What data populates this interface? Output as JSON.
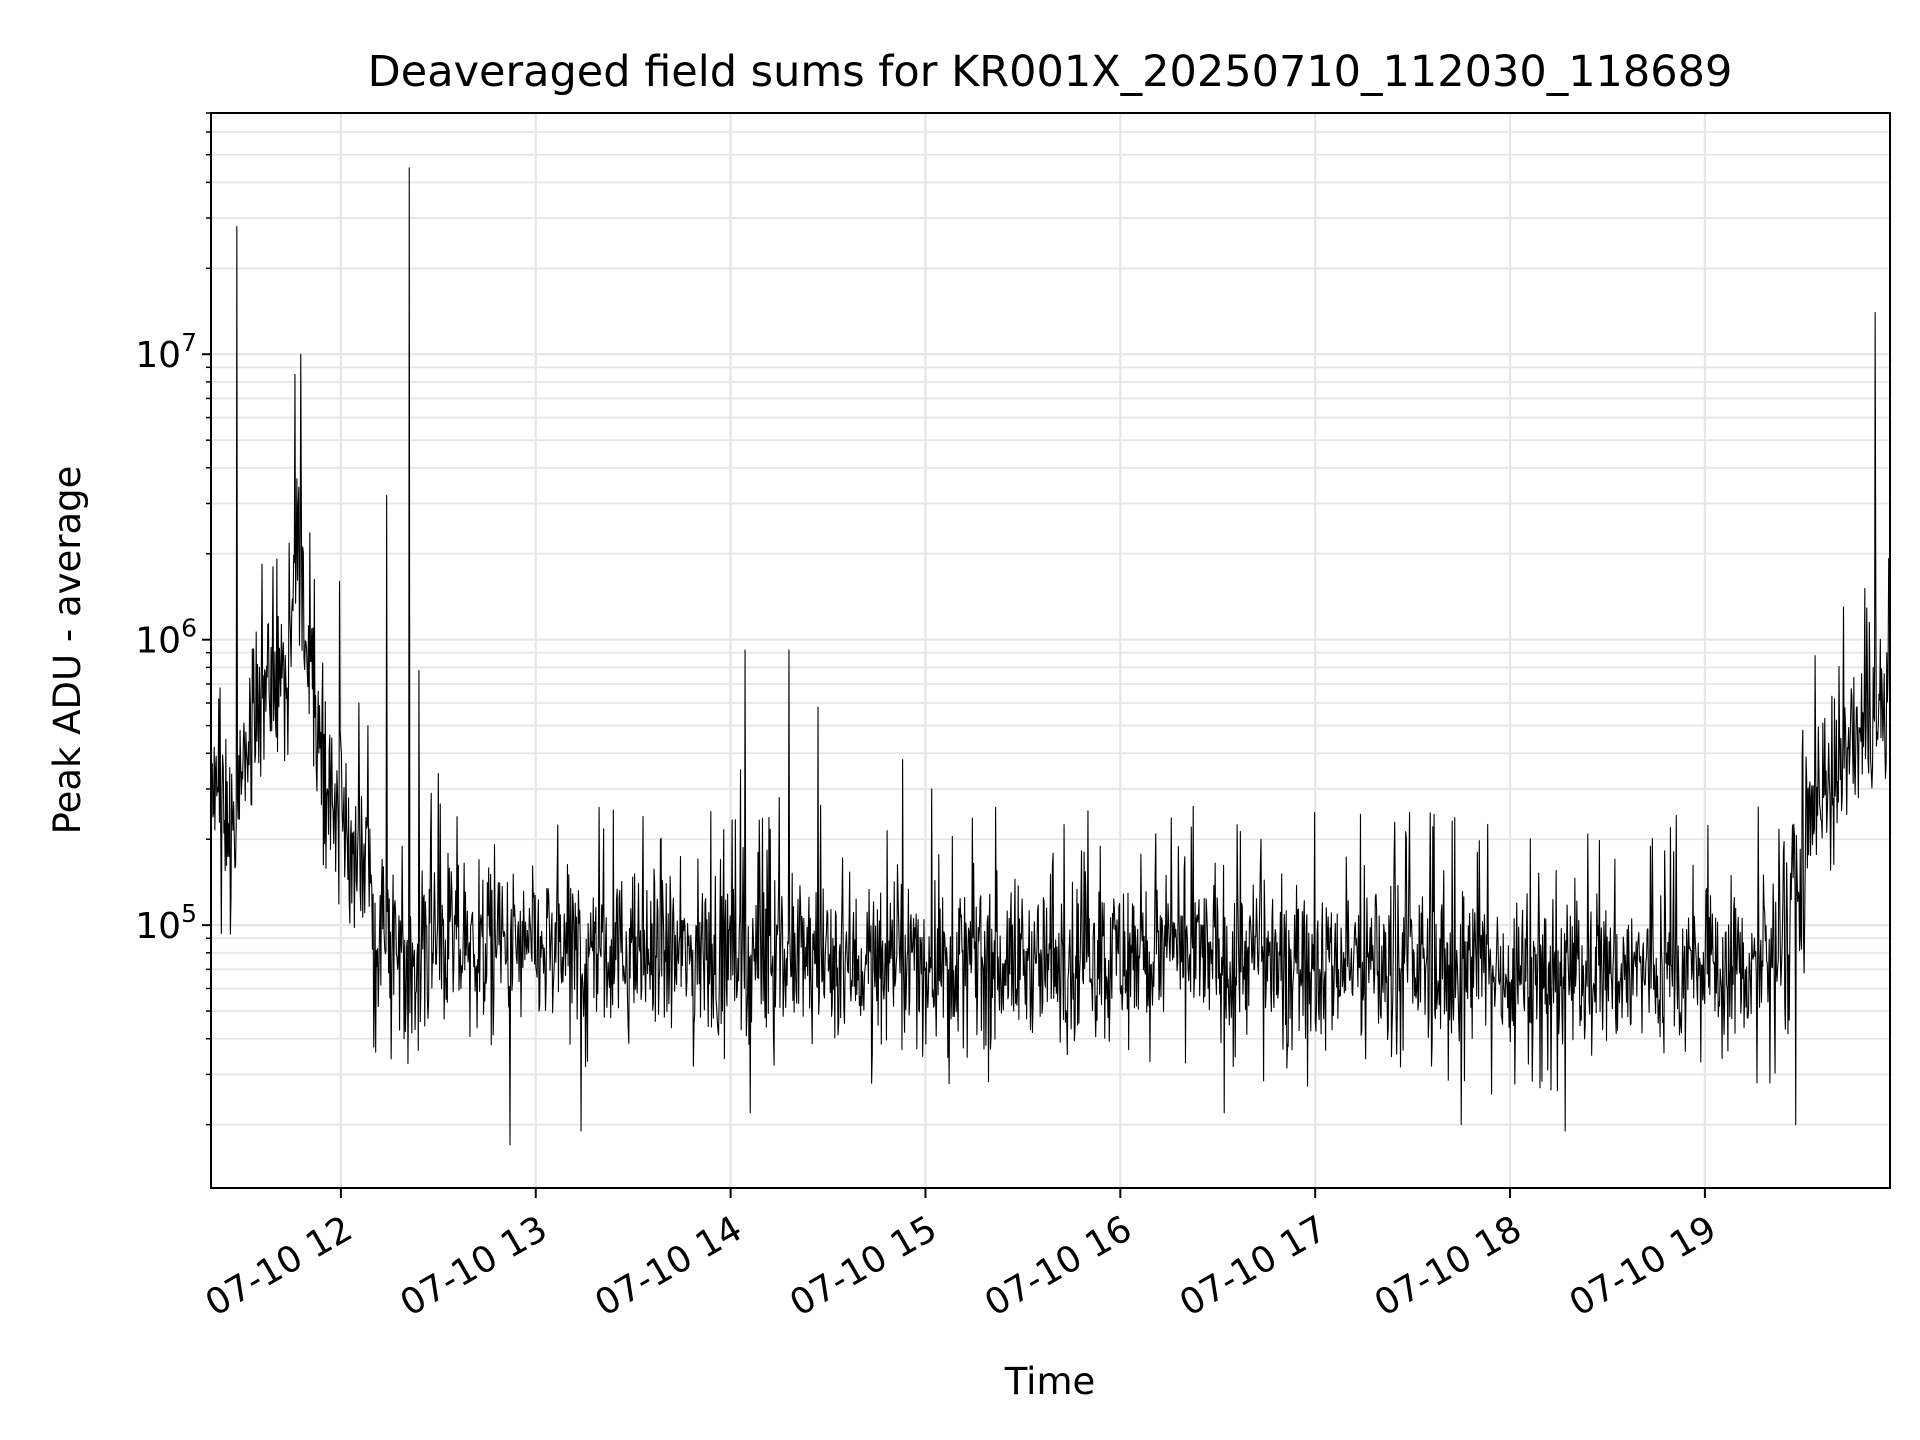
{
  "chart_data": {
    "type": "line",
    "title": "Deaveraged field sums for KR001X_20250710_112030_118689",
    "xlabel": "Time",
    "ylabel": "Peak ADU - average",
    "y_scale": "log",
    "grid": true,
    "legend": "none",
    "x_tick_labels": [
      "07-10 12",
      "07-10 13",
      "07-10 14",
      "07-10 15",
      "07-10 16",
      "07-10 17",
      "07-10 18",
      "07-10 19"
    ],
    "y_tick_labels": [
      {
        "value": 100000,
        "base": "10",
        "exp": "5"
      },
      {
        "value": 1000000,
        "base": "10",
        "exp": "6"
      },
      {
        "value": 10000000,
        "base": "10",
        "exp": "7"
      }
    ],
    "xlim": [
      "2025-07-10 11:20",
      "2025-07-10 19:57"
    ],
    "ylim": [
      12000,
      70000000
    ],
    "line_color": "#000000",
    "grid_color": "#e6e6e6",
    "series": [
      {
        "x_start": "2025-07-10 11:20",
        "x_end": "2025-07-10 19:57",
        "baseline": [
          [
            0.0,
            300000
          ],
          [
            3.0,
            230000
          ],
          [
            5.0,
            260000
          ],
          [
            7.0,
            200000
          ],
          [
            8.5,
            230000
          ],
          [
            10.0,
            320000
          ],
          [
            12.0,
            500000
          ],
          [
            14.0,
            600000
          ],
          [
            16.0,
            750000
          ],
          [
            18.5,
            650000
          ],
          [
            20.5,
            650000
          ],
          [
            22.0,
            700000
          ],
          [
            24.0,
            600000
          ],
          [
            25.5,
            1700000
          ],
          [
            27.0,
            2100000
          ],
          [
            28.5,
            1300000
          ],
          [
            30.5,
            900000
          ],
          [
            32.0,
            700000
          ],
          [
            34.0,
            450000
          ],
          [
            36.0,
            300000
          ],
          [
            38.0,
            260000
          ],
          [
            40.0,
            300000
          ],
          [
            42.0,
            200000
          ],
          [
            44.0,
            160000
          ],
          [
            46.0,
            170000
          ],
          [
            48.0,
            200000
          ],
          [
            50.0,
            90000
          ],
          [
            60.0,
            85000
          ],
          [
            80.0,
            85000
          ],
          [
            100.0,
            80000
          ],
          [
            150.0,
            78000
          ],
          [
            200.0,
            75000
          ],
          [
            250.0,
            75000
          ],
          [
            300.0,
            80000
          ],
          [
            350.0,
            75000
          ],
          [
            400.0,
            70000
          ],
          [
            440.0,
            70000
          ],
          [
            470.0,
            70000
          ],
          [
            480.0,
            75000
          ],
          [
            483.0,
            95000
          ],
          [
            486.0,
            120000
          ],
          [
            490.0,
            200000
          ],
          [
            495.0,
            300000
          ],
          [
            500.0,
            380000
          ],
          [
            505.0,
            420000
          ],
          [
            512.0,
            480000
          ],
          [
            517.0,
            600000
          ]
        ],
        "spikes": [
          [
            8.0,
            28000000
          ],
          [
            13.0,
            600000
          ],
          [
            15.0,
            800000
          ],
          [
            19.0,
            1800000
          ],
          [
            25.8,
            8500000
          ],
          [
            27.6,
            10000000
          ],
          [
            39.5,
            1600000
          ],
          [
            45.5,
            600000
          ],
          [
            54.0,
            3200000
          ],
          [
            57.5,
            70000
          ],
          [
            59.5,
            40000
          ],
          [
            61.0,
            45000000
          ],
          [
            64.0,
            780000
          ],
          [
            70.0,
            340000
          ],
          [
            92.0,
            17000
          ],
          [
            114.0,
            19000
          ],
          [
            154.0,
            250000
          ],
          [
            163.0,
            350000
          ],
          [
            164.5,
            920000
          ],
          [
            166.0,
            22000
          ],
          [
            175.0,
            280000
          ],
          [
            178.0,
            920000
          ],
          [
            187.0,
            580000
          ],
          [
            213.0,
            380000
          ],
          [
            222.0,
            300000
          ],
          [
            312.0,
            22000
          ],
          [
            385.0,
            20000
          ],
          [
            390.0,
            180000
          ],
          [
            417.0,
            19000
          ],
          [
            476.0,
            28000
          ],
          [
            480.0,
            28000
          ],
          [
            488.0,
            20000
          ],
          [
            490.5,
            68000
          ],
          [
            497.0,
            530000
          ],
          [
            512.5,
            14000000
          ],
          [
            516.0,
            900000
          ]
        ]
      }
    ]
  }
}
